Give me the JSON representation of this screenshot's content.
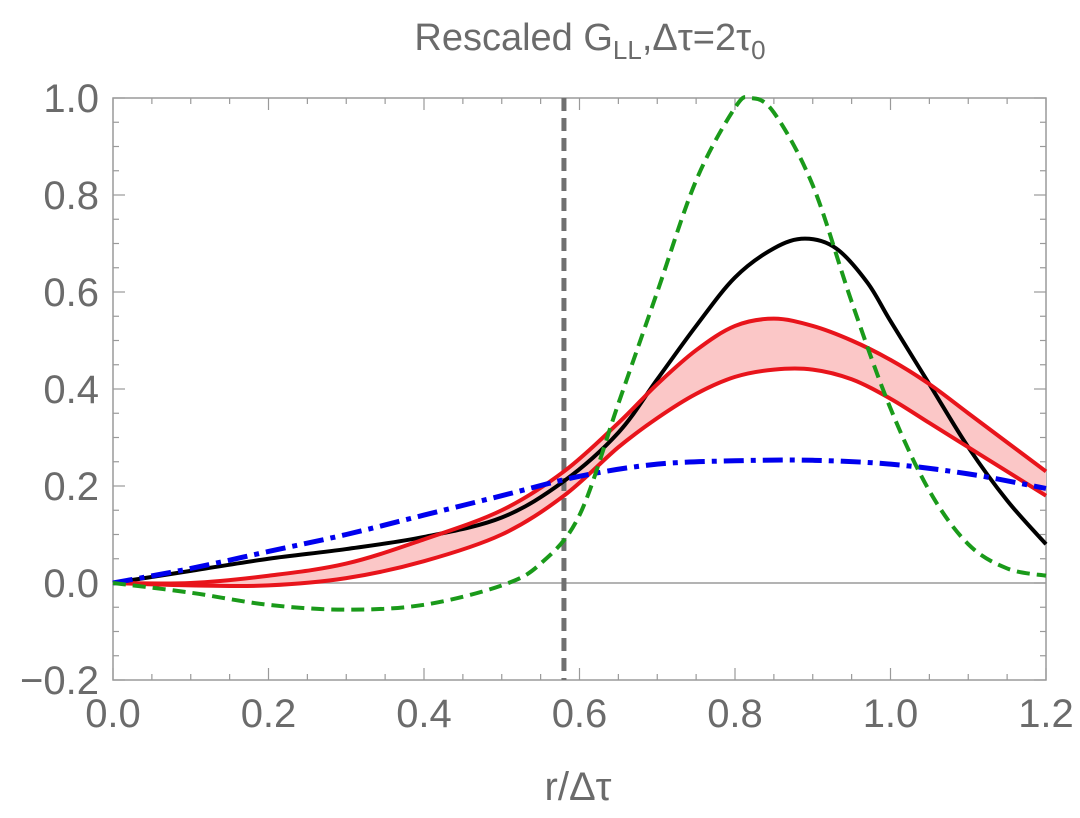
{
  "chart_data": {
    "type": "line",
    "title": {
      "prefix": "Rescaled G",
      "subscript": "LL",
      "middle": ",Δτ=2τ",
      "subscript2": "0"
    },
    "xlabel": "r/Δτ",
    "ylabel": "",
    "xlim": [
      0.0,
      1.2
    ],
    "ylim": [
      -0.2,
      1.0
    ],
    "x_ticks": [
      "0.0",
      "0.2",
      "0.4",
      "0.6",
      "0.8",
      "1.0",
      "1.2"
    ],
    "y_ticks": [
      "-0.2",
      "0.0",
      "0.2",
      "0.4",
      "0.6",
      "0.8",
      "1.0"
    ],
    "reference_line_x": 0.58,
    "zero_line_y": 0.0,
    "colors": {
      "black": "#000000",
      "red": "#e8141b",
      "band_fill": "#fbc7c7",
      "blue": "#0000ee",
      "green": "#1a9a1a",
      "reference": "#707070",
      "frame": "#9a9a9a",
      "text": "#6b6b6b"
    },
    "series": [
      {
        "name": "black-solid",
        "style": "solid",
        "x": [
          0.0,
          0.1,
          0.2,
          0.3,
          0.4,
          0.5,
          0.58,
          0.65,
          0.7,
          0.75,
          0.8,
          0.85,
          0.89,
          0.93,
          0.97,
          1.0,
          1.05,
          1.1,
          1.15,
          1.2
        ],
        "y": [
          0.0,
          0.025,
          0.05,
          0.07,
          0.095,
          0.135,
          0.21,
          0.31,
          0.42,
          0.53,
          0.63,
          0.69,
          0.71,
          0.69,
          0.62,
          0.54,
          0.41,
          0.28,
          0.17,
          0.08
        ]
      },
      {
        "name": "red-band-upper",
        "style": "solid",
        "x": [
          0.0,
          0.1,
          0.2,
          0.3,
          0.4,
          0.5,
          0.58,
          0.65,
          0.7,
          0.75,
          0.8,
          0.85,
          0.9,
          0.95,
          1.0,
          1.05,
          1.1,
          1.15,
          1.2
        ],
        "y": [
          0.0,
          0.0,
          0.015,
          0.04,
          0.09,
          0.15,
          0.23,
          0.33,
          0.41,
          0.48,
          0.53,
          0.545,
          0.53,
          0.5,
          0.46,
          0.41,
          0.35,
          0.29,
          0.23
        ]
      },
      {
        "name": "red-band-lower",
        "style": "solid",
        "x": [
          0.0,
          0.1,
          0.2,
          0.3,
          0.4,
          0.5,
          0.58,
          0.65,
          0.7,
          0.75,
          0.8,
          0.85,
          0.9,
          0.95,
          1.0,
          1.05,
          1.1,
          1.15,
          1.2
        ],
        "y": [
          0.0,
          -0.005,
          -0.005,
          0.01,
          0.045,
          0.1,
          0.18,
          0.28,
          0.34,
          0.39,
          0.425,
          0.44,
          0.44,
          0.42,
          0.38,
          0.33,
          0.28,
          0.23,
          0.18
        ]
      },
      {
        "name": "blue-dashdot",
        "style": "dashdot",
        "x": [
          0.0,
          0.1,
          0.2,
          0.3,
          0.4,
          0.5,
          0.6,
          0.7,
          0.8,
          0.9,
          1.0,
          1.1,
          1.2
        ],
        "y": [
          0.0,
          0.03,
          0.065,
          0.1,
          0.14,
          0.18,
          0.22,
          0.245,
          0.252,
          0.253,
          0.245,
          0.225,
          0.195
        ]
      },
      {
        "name": "green-dashed",
        "style": "dashed",
        "x": [
          0.0,
          0.1,
          0.2,
          0.3,
          0.4,
          0.5,
          0.55,
          0.6,
          0.65,
          0.7,
          0.75,
          0.8,
          0.82,
          0.85,
          0.9,
          0.95,
          1.0,
          1.05,
          1.1,
          1.15,
          1.2
        ],
        "y": [
          0.0,
          -0.02,
          -0.045,
          -0.055,
          -0.045,
          -0.005,
          0.04,
          0.14,
          0.37,
          0.6,
          0.83,
          0.98,
          1.0,
          0.97,
          0.82,
          0.58,
          0.36,
          0.19,
          0.08,
          0.03,
          0.015
        ]
      }
    ]
  }
}
